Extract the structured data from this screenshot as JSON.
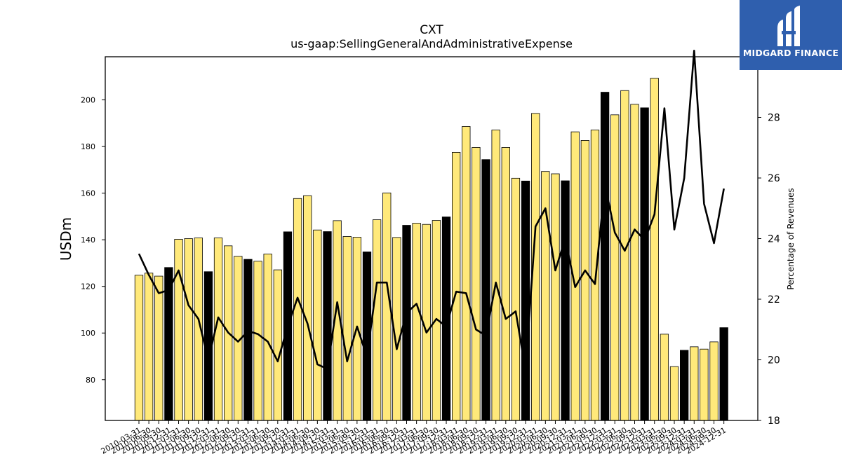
{
  "chart_data": {
    "type": "bar",
    "title": "CXT",
    "subtitle": "us-gaap:SellingGeneralAndAdministrativeExpense",
    "ylabel": "USDm",
    "y2label": "Percentage of Revenues",
    "ylim": [
      62.5,
      218.5
    ],
    "y2lim": [
      18,
      30
    ],
    "yticks": [
      80,
      100,
      120,
      140,
      160,
      180,
      200
    ],
    "y2ticks": [
      18,
      20,
      22,
      24,
      26,
      28
    ],
    "categories": [
      "2010-03-31",
      "2010-06-30",
      "2010-09-30",
      "2010-12-31",
      "2011-03-31",
      "2011-06-30",
      "2011-09-30",
      "2011-12-31",
      "2012-03-31",
      "2012-06-30",
      "2012-09-30",
      "2012-12-31",
      "2013-03-31",
      "2013-06-30",
      "2013-09-30",
      "2013-12-31",
      "2014-03-31",
      "2014-06-30",
      "2014-09-30",
      "2014-12-31",
      "2015-03-31",
      "2015-06-30",
      "2015-09-30",
      "2015-12-31",
      "2016-03-31",
      "2016-06-30",
      "2016-09-30",
      "2016-12-31",
      "2017-03-31",
      "2017-06-30",
      "2017-09-30",
      "2017-12-31",
      "2018-03-31",
      "2018-06-30",
      "2018-09-30",
      "2018-12-31",
      "2019-03-31",
      "2019-06-30",
      "2019-09-30",
      "2019-12-31",
      "2020-03-31",
      "2020-06-30",
      "2020-09-30",
      "2020-12-31",
      "2021-03-31",
      "2021-06-30",
      "2021-09-30",
      "2021-12-31",
      "2022-03-31",
      "2022-06-30",
      "2022-09-30",
      "2022-12-31",
      "2023-03-31",
      "2023-06-30",
      "2023-09-30",
      "2023-12-31",
      "2024-03-31",
      "2024-06-30",
      "2024-09-30",
      "2024-12-31"
    ],
    "series": [
      {
        "values": [
          124.8,
          125.7,
          124.4,
          128.1,
          140.2,
          140.5,
          140.8,
          126.3,
          140.8,
          137.4,
          132.9,
          131.6,
          130.8,
          133.9,
          127.1,
          143.4,
          157.7,
          158.9,
          144.2,
          143.5,
          148.2,
          141.4,
          141.1,
          134.8,
          148.6,
          160.1,
          141.0,
          146.2,
          147.1,
          146.6,
          148.3,
          149.8,
          177.5,
          188.6,
          179.6,
          174.4,
          187.1,
          179.6,
          166.4,
          165.2,
          194.2,
          169.3,
          168.3,
          165.3,
          186.3,
          182.6,
          187.1,
          203.3,
          193.6,
          204.0,
          198.1,
          196.6,
          209.3,
          99.5,
          85.6,
          92.6,
          94.1,
          93.1,
          96.2,
          102.3
        ],
        "highlight": [
          3,
          7,
          11,
          15,
          19,
          23,
          27,
          31,
          35,
          39,
          43,
          47,
          51,
          55,
          59
        ]
      },
      {
        "name": "Percentage of Revenues",
        "values": [
          23.5,
          22.8,
          22.2,
          22.3,
          22.95,
          21.8,
          21.35,
          20.0,
          21.4,
          20.9,
          20.6,
          20.95,
          20.85,
          20.6,
          19.95,
          21.1,
          22.05,
          21.2,
          19.85,
          19.7,
          21.9,
          19.95,
          21.1,
          20.1,
          22.55,
          22.55,
          20.35,
          21.55,
          21.85,
          20.9,
          21.35,
          21.1,
          22.25,
          22.2,
          21.0,
          20.8,
          22.55,
          21.35,
          21.6,
          19.65,
          24.4,
          25.0,
          22.95,
          24.0,
          22.4,
          22.95,
          22.5,
          25.8,
          24.2,
          23.6,
          24.3,
          23.95,
          24.8,
          28.3,
          24.3,
          26.0,
          30.2,
          25.15,
          23.85,
          25.65
        ]
      }
    ],
    "colors": {
      "bar": "#ffe97a",
      "bar_highlight": "#000000",
      "bar_edge": "#000000",
      "line": "#000000"
    },
    "grid": false
  },
  "logo": {
    "text": "MIDGARD FINANCE",
    "background": "#2f5fae"
  }
}
